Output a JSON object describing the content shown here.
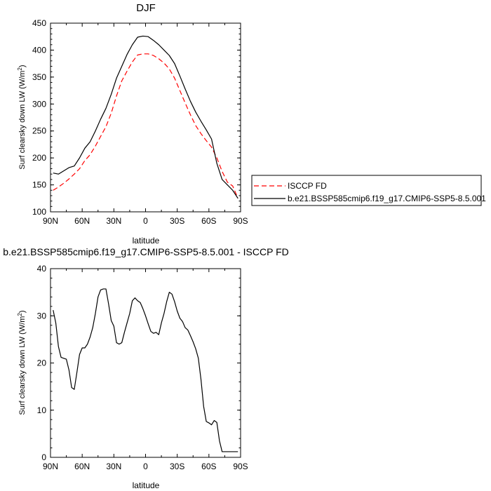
{
  "chart_data": [
    {
      "type": "line",
      "title": "DJF",
      "xlabel": "latitude",
      "ylabel": "Surf clearsky down LW (W/m",
      "ylabel_sup": "2",
      "ylabel_end": ")",
      "xlim": [
        90,
        -90
      ],
      "ylim": [
        100,
        450
      ],
      "xticks": [
        90,
        60,
        30,
        0,
        -30,
        -60,
        -90
      ],
      "xtick_labels": [
        "90N",
        "60N",
        "30N",
        "0",
        "30S",
        "60S",
        "90S"
      ],
      "yticks": [
        100,
        150,
        200,
        250,
        300,
        350,
        400,
        450
      ],
      "ytick_labels": [
        "100",
        "150",
        "200",
        "250",
        "300",
        "350",
        "400",
        "450"
      ],
      "legend_position": "right",
      "series": [
        {
          "name": "ISCCP FD",
          "color": "#ff0000",
          "dash": "dashed",
          "x": [
            87.5,
            82.5,
            77.5,
            72.5,
            67.5,
            62.5,
            57.5,
            52.5,
            47.5,
            42.5,
            37.5,
            32.5,
            27.5,
            22.5,
            17.5,
            12.5,
            7.5,
            2.5,
            -2.5,
            -7.5,
            -12.5,
            -17.5,
            -22.5,
            -27.5,
            -32.5,
            -37.5,
            -42.5,
            -47.5,
            -52.5,
            -57.5,
            -62.5,
            -67.5,
            -72.5,
            -77.5,
            -82.5,
            -87.5
          ],
          "y": [
            140,
            146,
            153,
            161,
            170,
            180,
            195,
            206,
            222,
            240,
            258,
            283,
            315,
            343,
            361,
            378,
            391,
            393,
            393,
            390,
            384,
            376,
            365,
            348,
            325,
            302,
            280,
            260,
            245,
            232,
            220,
            200,
            175,
            155,
            148,
            125
          ]
        },
        {
          "name": "b.e21.BSSP585cmip6.f19_g17.CMIP6-SSP5-8.5.001",
          "color": "#000000",
          "dash": "solid",
          "x": [
            87.5,
            82.5,
            77.5,
            72.5,
            67.5,
            62.5,
            57.5,
            52.5,
            47.5,
            42.5,
            37.5,
            32.5,
            27.5,
            22.5,
            17.5,
            12.5,
            7.5,
            2.5,
            -2.5,
            -7.5,
            -12.5,
            -17.5,
            -22.5,
            -27.5,
            -32.5,
            -37.5,
            -42.5,
            -47.5,
            -52.5,
            -57.5,
            -62.5,
            -67.5,
            -72.5,
            -77.5,
            -82.5,
            -87.5
          ],
          "y": [
            172,
            170,
            176,
            182,
            185,
            200,
            218,
            230,
            250,
            272,
            292,
            318,
            348,
            370,
            392,
            410,
            424,
            426,
            425,
            418,
            410,
            400,
            390,
            375,
            352,
            328,
            305,
            285,
            268,
            252,
            235,
            190,
            160,
            150,
            140,
            125
          ]
        }
      ]
    },
    {
      "type": "line",
      "title": "b.e21.BSSP585cmip6.f19_g17.CMIP6-SSP5-8.5.001 - ISCCP FD",
      "xlabel": "latitude",
      "ylabel": "Surf clearsky down LW (W/m",
      "ylabel_sup": "2",
      "ylabel_end": ")",
      "xlim": [
        90,
        -90
      ],
      "ylim": [
        0,
        40
      ],
      "xticks": [
        90,
        60,
        30,
        0,
        -30,
        -60,
        -90
      ],
      "xtick_labels": [
        "90N",
        "60N",
        "30N",
        "0",
        "30S",
        "60S",
        "90S"
      ],
      "yticks": [
        0,
        10,
        20,
        30,
        40
      ],
      "ytick_labels": [
        "0",
        "10",
        "20",
        "30",
        "40"
      ],
      "series": [
        {
          "color": "#000000",
          "dash": "solid",
          "x": [
            87.5,
            85,
            82.5,
            80,
            77.5,
            75,
            72.5,
            70,
            67.5,
            65,
            62.5,
            60,
            57.5,
            55,
            52.5,
            50,
            47.5,
            45,
            42.5,
            40,
            37.5,
            35,
            32.5,
            30,
            27.5,
            25,
            22.5,
            20,
            17.5,
            15,
            12.5,
            10,
            7.5,
            5,
            2.5,
            0,
            -2.5,
            -5,
            -7.5,
            -10,
            -12.5,
            -15,
            -17.5,
            -20,
            -22.5,
            -25,
            -27.5,
            -30,
            -32.5,
            -35,
            -37.5,
            -40,
            -42.5,
            -45,
            -47.5,
            -50,
            -52.5,
            -55,
            -57.5,
            -60,
            -62.5,
            -65,
            -67.5,
            -70,
            -72.5,
            -75,
            -77.5,
            -80,
            -82.5,
            -85,
            -87.5
          ],
          "y": [
            31.2,
            28.5,
            23.5,
            21.2,
            21.0,
            20.8,
            18.5,
            14.8,
            14.4,
            18.0,
            21.8,
            23.2,
            23.2,
            24.0,
            25.5,
            27.5,
            30.5,
            34.0,
            35.5,
            35.7,
            35.7,
            32.5,
            29.0,
            27.8,
            24.3,
            24.0,
            24.3,
            26.5,
            28.5,
            30.5,
            33.2,
            33.8,
            33.2,
            32.8,
            31.5,
            30.0,
            28.3,
            26.7,
            26.3,
            26.5,
            26.0,
            28.5,
            30.5,
            33.0,
            35.0,
            34.6,
            33.0,
            31.0,
            29.5,
            28.8,
            27.5,
            27.0,
            25.8,
            24.5,
            23.0,
            21.0,
            16.5,
            10.8,
            7.6,
            7.3,
            6.9,
            7.8,
            7.4,
            3.5,
            1.2,
            1.2,
            1.2,
            1.2,
            1.2,
            1.2,
            1.2
          ]
        }
      ]
    }
  ]
}
